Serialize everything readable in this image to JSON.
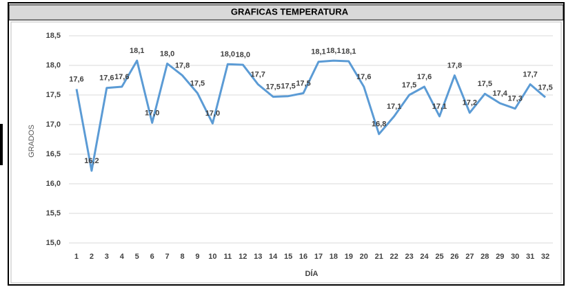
{
  "chart_data": {
    "type": "line",
    "title": "GRAFICAS TEMPERATURA",
    "x_label": "DÍA",
    "y_label": "GRADOS",
    "categories": [
      "1",
      "2",
      "3",
      "4",
      "5",
      "6",
      "7",
      "8",
      "9",
      "10",
      "11",
      "12",
      "13",
      "14",
      "15",
      "16",
      "17",
      "18",
      "19",
      "20",
      "21",
      "22",
      "23",
      "24",
      "25",
      "26",
      "27",
      "28",
      "29",
      "30",
      "31",
      "32"
    ],
    "series": [
      {
        "color": "#5b9bd5",
        "values": [
          17.6,
          16.22,
          17.62,
          17.64,
          18.08,
          17.03,
          18.03,
          17.83,
          17.53,
          17.02,
          18.02,
          18.01,
          17.68,
          17.47,
          17.48,
          17.53,
          18.06,
          18.08,
          18.07,
          17.64,
          16.84,
          17.14,
          17.5,
          17.64,
          17.14,
          17.83,
          17.2,
          17.52,
          17.36,
          17.27,
          17.68,
          17.46
        ],
        "value_labels": [
          "17,6",
          "16,2",
          "17,6",
          "17,6",
          "18,1",
          "17,0",
          "18,0",
          "17,8",
          "17,5",
          "17,0",
          "18,0",
          "18,0",
          "17,7",
          "17,5",
          "17,5",
          "17,5",
          "18,1",
          "18,1",
          "18,1",
          "17,6",
          "16,8",
          "17,1",
          "17,5",
          "17,6",
          "17,1",
          "17,8",
          "17,2",
          "17,5",
          "17,4",
          "17,3",
          "17,7",
          "17,5"
        ]
      }
    ],
    "ylim": [
      15.0,
      18.5
    ],
    "yticks": [
      {
        "value": 15.0,
        "label": "15,0"
      },
      {
        "value": 15.5,
        "label": "15,5"
      },
      {
        "value": 16.0,
        "label": "16,0"
      },
      {
        "value": 16.5,
        "label": "16,5"
      },
      {
        "value": 17.0,
        "label": "17,0"
      },
      {
        "value": 17.5,
        "label": "17,5"
      },
      {
        "value": 18.0,
        "label": "18,0"
      },
      {
        "value": 18.5,
        "label": "18,5"
      }
    ],
    "grid": true
  }
}
